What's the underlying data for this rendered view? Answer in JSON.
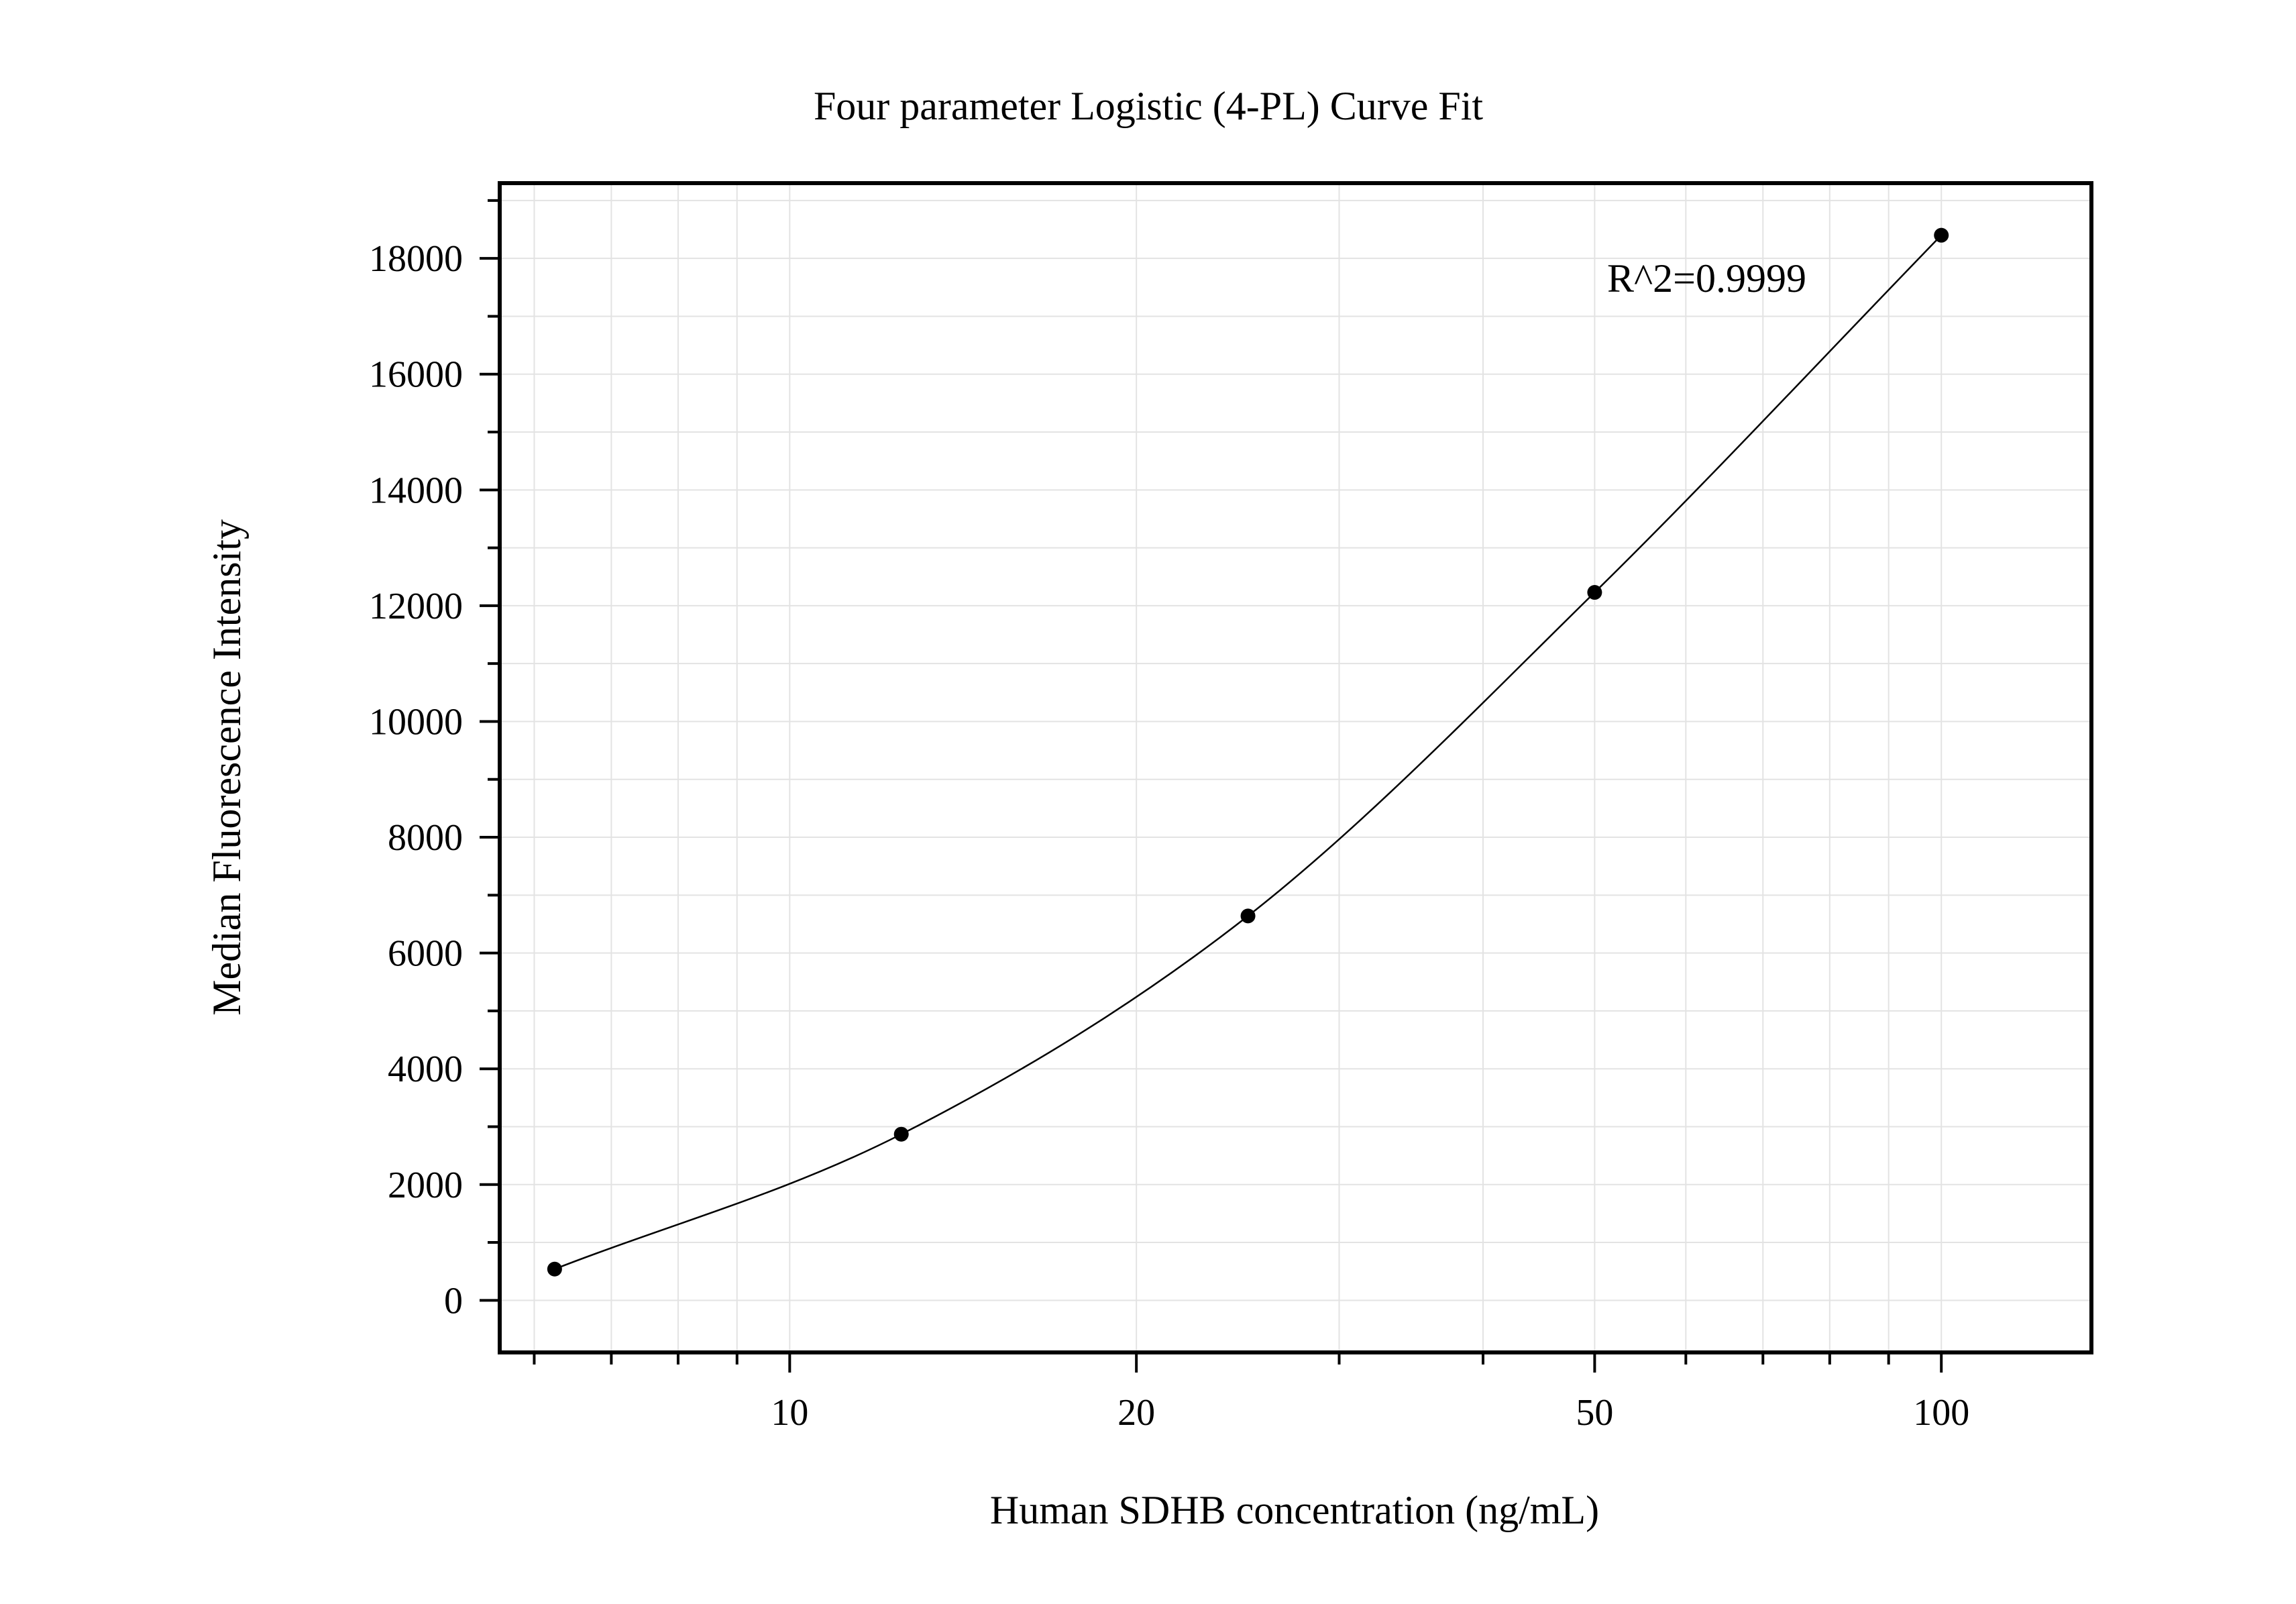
{
  "chart_data": {
    "type": "scatter",
    "title": "Four parameter Logistic (4-PL) Curve Fit",
    "xlabel": "Human SDHB concentration (ng/mL)",
    "ylabel": "Median Fluorescence Intensity",
    "x_scale": "log",
    "xlim": [
      5.6,
      135
    ],
    "ylim": [
      -900,
      19300
    ],
    "x_ticks": [
      10,
      20,
      50,
      100
    ],
    "x_tick_labels": [
      "10",
      "20",
      "50",
      "100"
    ],
    "y_ticks": [
      0,
      2000,
      4000,
      6000,
      8000,
      10000,
      12000,
      14000,
      16000,
      18000
    ],
    "y_tick_labels": [
      "0",
      "2000",
      "4000",
      "6000",
      "8000",
      "10000",
      "12000",
      "14000",
      "16000",
      "18000"
    ],
    "grid": true,
    "annotation": "R^2=0.9999",
    "series": [
      {
        "x": [
          6.25,
          12.5,
          25,
          50,
          100
        ],
        "y": [
          540,
          2870,
          6640,
          12230,
          18400
        ]
      }
    ]
  }
}
